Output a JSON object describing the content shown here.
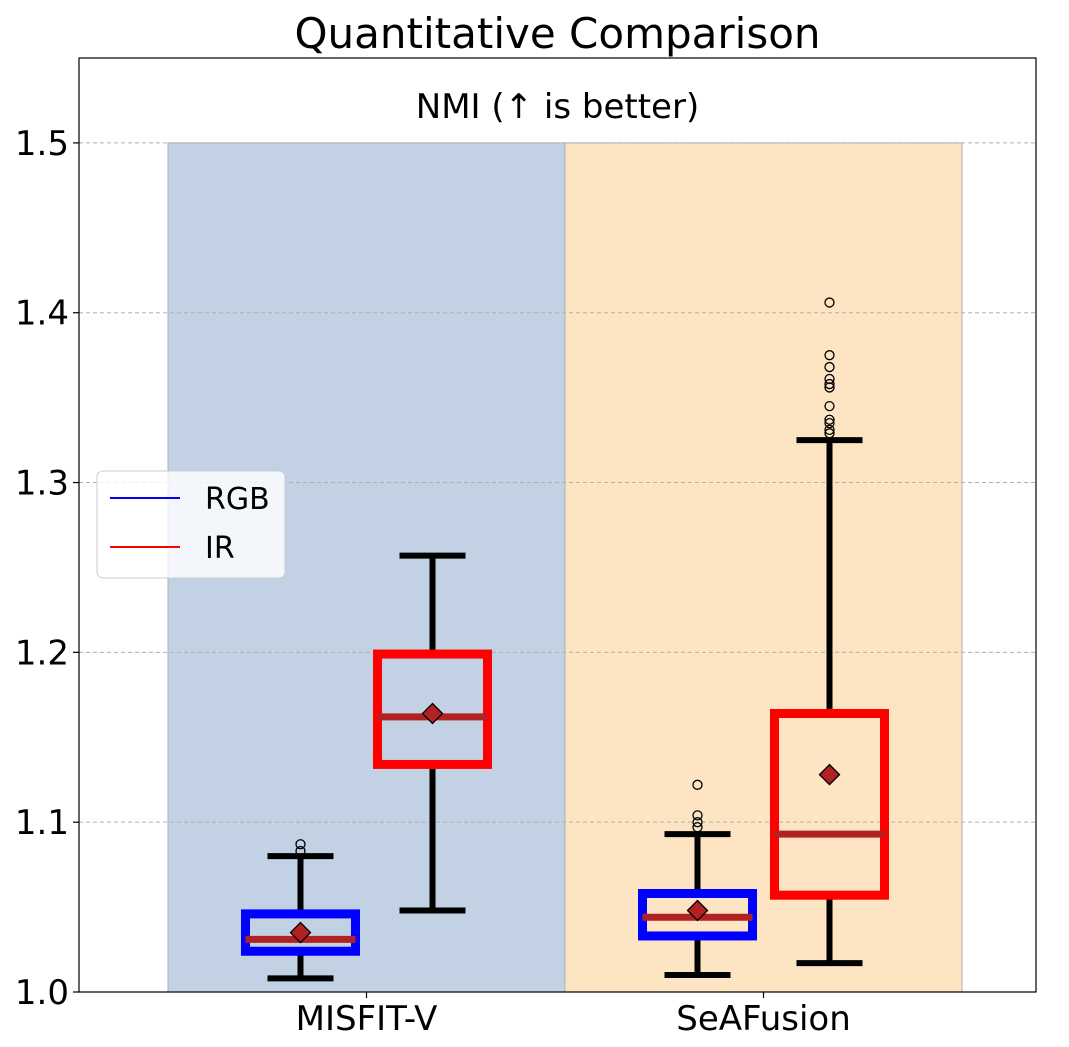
{
  "chart_data": {
    "type": "box",
    "title": "Quantitative Comparison",
    "subtitle": "NMI (↑ is better)",
    "xlabel": "",
    "ylabel": "",
    "ylim": [
      1.0,
      1.55
    ],
    "yticks": [
      "1.0",
      "1.1",
      "1.2",
      "1.3",
      "1.4",
      "1.5"
    ],
    "ytick_values": [
      1.0,
      1.1,
      1.2,
      1.3,
      1.4,
      1.5
    ],
    "grid": "horizontal dashed",
    "categories": [
      "MISFIT-V",
      "SeAFusion"
    ],
    "category_bands": [
      {
        "category": "MISFIT-V",
        "color": "#c2d1e3",
        "y_range": [
          1.0,
          1.5
        ]
      },
      {
        "category": "SeAFusion",
        "color": "#fde4c3",
        "y_range": [
          1.0,
          1.5
        ]
      }
    ],
    "legend": {
      "position": "center-left",
      "entries": [
        {
          "label": "RGB",
          "color": "#0000ff"
        },
        {
          "label": "IR",
          "color": "#ff0000"
        }
      ]
    },
    "series": [
      {
        "name": "RGB",
        "color": "#0000ff",
        "boxes": [
          {
            "category": "MISFIT-V",
            "whisker_low": 1.008,
            "q1": 1.024,
            "median": 1.031,
            "q3": 1.046,
            "whisker_high": 1.08,
            "mean": 1.035,
            "outliers": [
              1.083,
              1.087
            ]
          },
          {
            "category": "SeAFusion",
            "whisker_low": 1.01,
            "q1": 1.033,
            "median": 1.044,
            "q3": 1.058,
            "whisker_high": 1.093,
            "mean": 1.048,
            "outliers": [
              1.097,
              1.1,
              1.104,
              1.122
            ]
          }
        ]
      },
      {
        "name": "IR",
        "color": "#ff0000",
        "boxes": [
          {
            "category": "MISFIT-V",
            "whisker_low": 1.048,
            "q1": 1.134,
            "median": 1.162,
            "q3": 1.199,
            "whisker_high": 1.257,
            "mean": 1.164,
            "outliers": []
          },
          {
            "category": "SeAFusion",
            "whisker_low": 1.017,
            "q1": 1.057,
            "median": 1.093,
            "q3": 1.164,
            "whisker_high": 1.325,
            "mean": 1.128,
            "outliers": [
              1.329,
              1.331,
              1.335,
              1.337,
              1.345,
              1.356,
              1.358,
              1.361,
              1.368,
              1.375,
              1.406
            ]
          }
        ]
      }
    ],
    "median_color": "#b22222",
    "mean_marker_color": "#b22222"
  }
}
